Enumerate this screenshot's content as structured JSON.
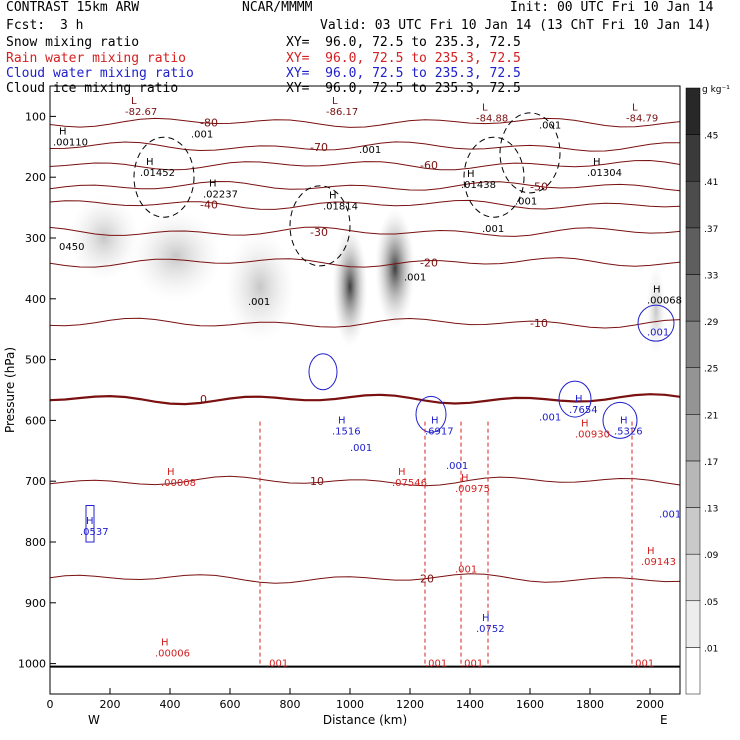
{
  "header": {
    "left_title": "CONTRAST 15km ARW",
    "center_title": "NCAR/MMMM",
    "init": "Init: 00 UTC Fri 10 Jan 14",
    "fcst_label": "Fcst:",
    "fcst_value": "3 h",
    "valid": "Valid: 03 UTC Fri 10 Jan 14 (13 ChT Fri 10 Jan 14)",
    "fields": [
      {
        "name": "Snow mixing ratio",
        "xy": "XY=  96.0, 72.5 to 235.3, 72.5",
        "color": "#000000"
      },
      {
        "name": "Rain water mixing ratio",
        "xy": "XY=  96.0, 72.5 to 235.3, 72.5",
        "color": "#d42020"
      },
      {
        "name": "Cloud water mixing ratio",
        "xy": "XY=  96.0, 72.5 to 235.3, 72.5",
        "color": "#2020cc"
      },
      {
        "name": "Cloud ice mixing ratio",
        "xy": "XY=  96.0, 72.5 to 235.3, 72.5",
        "color": "#000000"
      }
    ]
  },
  "chart_data": {
    "type": "cross-section contour",
    "xlabel": "Distance (km)",
    "ylabel": "Pressure (hPa)",
    "xlim": [
      0,
      2100
    ],
    "ylim": [
      1050,
      50
    ],
    "x_ticks": [
      0,
      200,
      400,
      600,
      800,
      1000,
      1200,
      1400,
      1600,
      1800,
      2000
    ],
    "y_ticks": [
      100,
      200,
      300,
      400,
      500,
      600,
      700,
      800,
      900,
      1000
    ],
    "x_end_labels": {
      "left": "W",
      "right": "E"
    },
    "colorbar": {
      "unit": "g kg⁻¹",
      "levels": [
        ".01",
        ".05",
        ".09",
        ".13",
        ".17",
        ".21",
        ".25",
        ".29",
        ".33",
        ".37",
        ".41",
        ".45"
      ]
    },
    "temperature_contours": [
      {
        "label": "-80",
        "p": 110
      },
      {
        "label": "-70",
        "p": 150
      },
      {
        "label": "-60",
        "p": 180
      },
      {
        "label": "-50",
        "p": 215
      },
      {
        "label": "-40",
        "p": 245
      },
      {
        "label": "-30",
        "p": 290
      },
      {
        "label": "-20",
        "p": 340
      },
      {
        "label": "-10",
        "p": 440
      },
      {
        "label": "0",
        "p": 565
      },
      {
        "label": "10",
        "p": 700
      },
      {
        "label": "20",
        "p": 860
      }
    ],
    "snow_max_labels": [
      {
        "text": "H",
        "value": ".00110",
        "x": 30,
        "p": 130
      },
      {
        "text": "H",
        "value": ".01452",
        "x": 320,
        "p": 180
      },
      {
        "text": "H",
        "value": ".02237",
        "x": 530,
        "p": 215
      },
      {
        "text": "H",
        "value": ".01814",
        "x": 930,
        "p": 235
      },
      {
        "text": "H",
        "value": ".01438",
        "x": 1390,
        "p": 200
      },
      {
        "text": "H",
        "value": ".01304",
        "x": 1810,
        "p": 180
      },
      {
        "text": "H",
        "value": ".00068",
        "x": 2010,
        "p": 390
      }
    ],
    "minimum_labels": [
      {
        "text": "L",
        "value": "-82.67",
        "x": 270,
        "p": 80
      },
      {
        "text": "L",
        "value": "-86.17",
        "x": 940,
        "p": 80
      },
      {
        "text": "L",
        "value": "-84.88",
        "x": 1440,
        "p": 90
      },
      {
        "text": "L",
        "value": "-84.79",
        "x": 1940,
        "p": 90
      }
    ],
    "rain_max_labels": [
      {
        "text": "H",
        "value": ".00008",
        "x": 390,
        "p": 690
      },
      {
        "text": "H",
        "value": ".07546",
        "x": 1160,
        "p": 690
      },
      {
        "text": "H",
        "value": ".00975",
        "x": 1370,
        "p": 700
      },
      {
        "text": "H",
        "value": ".00930",
        "x": 1770,
        "p": 610
      },
      {
        "text": "H",
        "value": ".09143",
        "x": 1990,
        "p": 820
      },
      {
        "text": "H",
        "value": ".00006",
        "x": 370,
        "p": 970
      }
    ],
    "cloudwater_max_labels": [
      {
        "text": "H",
        "value": ".1516",
        "x": 960,
        "p": 605
      },
      {
        "text": "H",
        "value": ".6917",
        "x": 1270,
        "p": 605
      },
      {
        "text": "H",
        "value": ".7654",
        "x": 1750,
        "p": 570
      },
      {
        "text": "H",
        "value": ".5326",
        "x": 1900,
        "p": 605
      },
      {
        "text": "H",
        "value": ".0537",
        "x": 120,
        "p": 770
      },
      {
        "text": "H",
        "value": ".0752",
        "x": 1440,
        "p": 930
      }
    ],
    "small_labels": [
      {
        "text": ".001",
        "x": 470,
        "p": 135,
        "color": "#000000"
      },
      {
        "text": ".001",
        "x": 1030,
        "p": 160,
        "color": "#000000"
      },
      {
        "text": ".001",
        "x": 1630,
        "p": 120,
        "color": "#000000"
      },
      {
        "text": ".001",
        "x": 1550,
        "p": 245,
        "color": "#000000"
      },
      {
        "text": ".001",
        "x": 1440,
        "p": 290,
        "color": "#000000"
      },
      {
        "text": ".001",
        "x": 1180,
        "p": 370,
        "color": "#000000"
      },
      {
        "text": ".001",
        "x": 660,
        "p": 410,
        "color": "#000000"
      },
      {
        "text": "0450",
        "x": 30,
        "p": 320,
        "color": "#000000"
      },
      {
        "text": ".001",
        "x": 1990,
        "p": 460,
        "color": "#2020cc"
      },
      {
        "text": ".001",
        "x": 1630,
        "p": 600,
        "color": "#2020cc"
      },
      {
        "text": ".001",
        "x": 1000,
        "p": 650,
        "color": "#2020cc"
      },
      {
        "text": ".001",
        "x": 1320,
        "p": 680,
        "color": "#2020cc"
      },
      {
        "text": ".001",
        "x": 2030,
        "p": 760,
        "color": "#2020cc"
      },
      {
        "text": ".001",
        "x": 1350,
        "p": 850,
        "color": "#d42020"
      },
      {
        "text": ".001",
        "x": 720,
        "p": 1005,
        "color": "#d42020"
      },
      {
        "text": ".001",
        "x": 1250,
        "p": 1005,
        "color": "#d42020"
      },
      {
        "text": ".001",
        "x": 1370,
        "p": 1005,
        "color": "#d42020"
      },
      {
        "text": ".001",
        "x": 1940,
        "p": 1005,
        "color": "#d42020"
      }
    ],
    "colors": {
      "temperature": "#7a1010",
      "rain": "#d42020",
      "cloudwater": "#2020cc",
      "snow": "#000000",
      "freezing": "#8b0000"
    }
  }
}
